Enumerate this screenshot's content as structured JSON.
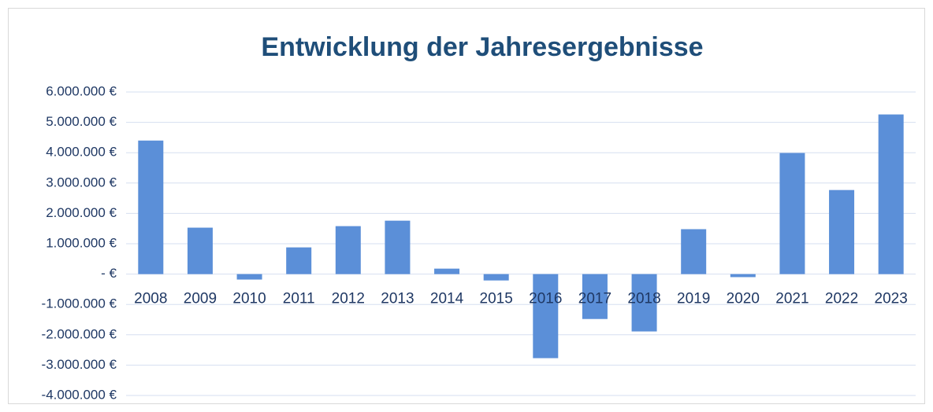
{
  "chart_data": {
    "type": "bar",
    "title": "Entwicklung der Jahresergebnisse",
    "categories": [
      "2008",
      "2009",
      "2010",
      "2011",
      "2012",
      "2013",
      "2014",
      "2015",
      "2016",
      "2017",
      "2018",
      "2019",
      "2020",
      "2021",
      "2022",
      "2023"
    ],
    "values": [
      4400000,
      1530000,
      -180000,
      880000,
      1580000,
      1760000,
      180000,
      -210000,
      -2770000,
      -1480000,
      -1890000,
      1480000,
      -100000,
      3990000,
      2770000,
      5260000
    ],
    "color": "#5b8fd8",
    "ylim": [
      -4000000,
      6000000
    ],
    "yticks": [
      {
        "value": -4000000,
        "label": "-4.000.000 €"
      },
      {
        "value": -3000000,
        "label": "-3.000.000 €"
      },
      {
        "value": -2000000,
        "label": "-2.000.000 €"
      },
      {
        "value": -1000000,
        "label": "-1.000.000 €"
      },
      {
        "value": 0,
        "label": "-   €"
      },
      {
        "value": 1000000,
        "label": "1.000.000 €"
      },
      {
        "value": 2000000,
        "label": "2.000.000 €"
      },
      {
        "value": 3000000,
        "label": "3.000.000 €"
      },
      {
        "value": 4000000,
        "label": "4.000.000 €"
      },
      {
        "value": 5000000,
        "label": "5.000.000 €"
      },
      {
        "value": 6000000,
        "label": "6.000.000 €"
      }
    ],
    "grid": true
  }
}
